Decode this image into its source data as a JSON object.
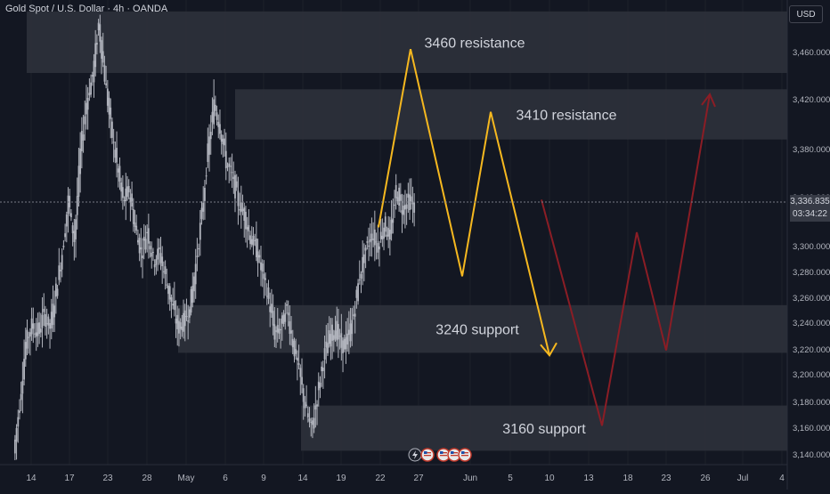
{
  "header": {
    "title": "Gold Spot / U.S. Dollar · 4h · OANDA",
    "currency": "USD"
  },
  "current_price": {
    "price": "3,336.835",
    "countdown": "03:34:22"
  },
  "zones": [
    {
      "label": "3460 resistance",
      "low": 3443,
      "high": 3492
    },
    {
      "label": "3410 resistance",
      "low": 3390,
      "high": 3430
    },
    {
      "label": "3240 support",
      "low": 3220,
      "high": 3258
    },
    {
      "label": "3160 support",
      "low": 3142,
      "high": 3178
    }
  ],
  "colors": {
    "background": "#131722",
    "candle": "#b2b5be",
    "zone": "#2f323c",
    "projection_yellow": "#f6b81f",
    "projection_red": "#8b1d25",
    "price_line": "#787b86"
  },
  "icons": [
    "lightning-icon",
    "us-flag-icon",
    "us-flag-icon",
    "us-flag-icon",
    "us-flag-icon"
  ],
  "chart_data": {
    "type": "candlestick",
    "y_axis_ticks": [
      "3,460.000",
      "3,420.000",
      "3,380.000",
      "3,340.000",
      "3,300.000",
      "3,280.000",
      "3,260.000",
      "3,240.000",
      "3,220.000",
      "3,200.000",
      "3,180.000",
      "3,160.000",
      "3,140.000"
    ],
    "x_axis_ticks": [
      "14",
      "17",
      "23",
      "28",
      "May",
      "6",
      "9",
      "14",
      "19",
      "22",
      "27",
      "Jun",
      "5",
      "10",
      "13",
      "18",
      "23",
      "26",
      "Jul",
      "4"
    ],
    "ylim": [
      3132,
      3504
    ],
    "price_path": [
      [
        0,
        3140
      ],
      [
        1,
        3180
      ],
      [
        2,
        3228
      ],
      [
        3,
        3242
      ],
      [
        4,
        3236
      ],
      [
        5,
        3250
      ],
      [
        6,
        3240
      ],
      [
        7,
        3270
      ],
      [
        8,
        3300
      ],
      [
        9,
        3342
      ],
      [
        10,
        3310
      ],
      [
        11,
        3380
      ],
      [
        12,
        3420
      ],
      [
        13,
        3440
      ],
      [
        14,
        3482
      ],
      [
        15,
        3440
      ],
      [
        16,
        3400
      ],
      [
        17,
        3370
      ],
      [
        18,
        3340
      ],
      [
        19,
        3350
      ],
      [
        20,
        3320
      ],
      [
        21,
        3300
      ],
      [
        22,
        3318
      ],
      [
        23,
        3294
      ],
      [
        24,
        3300
      ],
      [
        25,
        3280
      ],
      [
        26,
        3260
      ],
      [
        27,
        3240
      ],
      [
        28,
        3245
      ],
      [
        29,
        3255
      ],
      [
        30,
        3290
      ],
      [
        31,
        3330
      ],
      [
        32,
        3380
      ],
      [
        33,
        3418
      ],
      [
        34,
        3400
      ],
      [
        35,
        3372
      ],
      [
        36,
        3360
      ],
      [
        37,
        3340
      ],
      [
        38,
        3330
      ],
      [
        39,
        3312
      ],
      [
        40,
        3302
      ],
      [
        41,
        3282
      ],
      [
        42,
        3262
      ],
      [
        43,
        3235
      ],
      [
        44,
        3240
      ],
      [
        45,
        3255
      ],
      [
        46,
        3228
      ],
      [
        47,
        3205
      ],
      [
        48,
        3178
      ],
      [
        49,
        3158
      ],
      [
        50,
        3185
      ],
      [
        51,
        3215
      ],
      [
        52,
        3232
      ],
      [
        53,
        3240
      ],
      [
        54,
        3225
      ],
      [
        55,
        3230
      ],
      [
        56,
        3250
      ],
      [
        57,
        3282
      ],
      [
        58,
        3302
      ],
      [
        59,
        3315
      ],
      [
        60,
        3305
      ],
      [
        61,
        3322
      ],
      [
        62,
        3312
      ],
      [
        63,
        3350
      ],
      [
        64,
        3335
      ],
      [
        65,
        3342
      ],
      [
        66,
        3336
      ]
    ],
    "projection_yellow": [
      [
        3320,
        3320
      ],
      [
        3462,
        3462
      ],
      [
        3281,
        3281
      ],
      [
        3412,
        3412
      ],
      [
        3218,
        3218
      ]
    ],
    "projection_red": [
      [
        3342,
        3342
      ],
      [
        3162,
        3162
      ],
      [
        3316,
        3316
      ],
      [
        3222,
        3222
      ],
      [
        3426,
        3426
      ]
    ]
  }
}
